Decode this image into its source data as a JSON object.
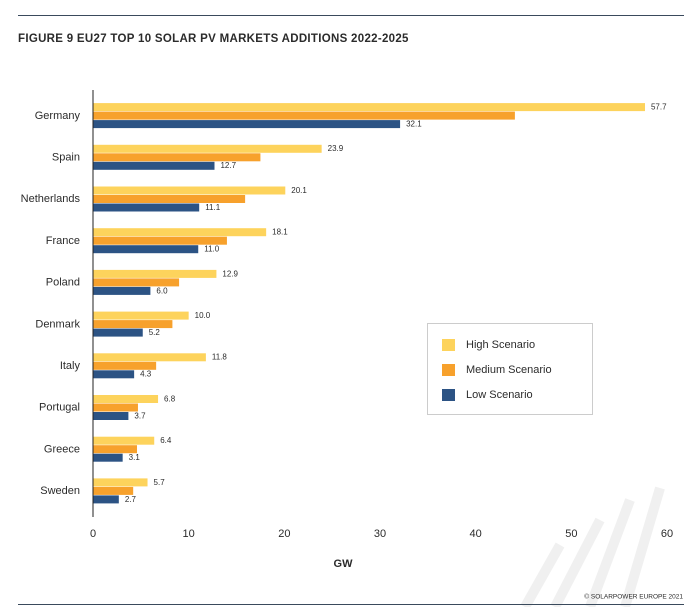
{
  "chart_data": {
    "type": "bar",
    "orientation": "horizontal",
    "title": "FIGURE 9 EU27 TOP 10 SOLAR PV MARKETS ADDITIONS 2022-2025",
    "x_label": "GW",
    "source": "© SOLARPOWER EUROPE 2021",
    "categories": [
      "Germany",
      "Spain",
      "Netherlands",
      "France",
      "Poland",
      "Denmark",
      "Italy",
      "Portugal",
      "Greece",
      "Sweden"
    ],
    "series": [
      {
        "name": "High Scenario",
        "color": "#fdd35c",
        "values": [
          57.7,
          23.9,
          20.1,
          18.1,
          12.9,
          10.0,
          11.8,
          6.8,
          6.4,
          5.7
        ],
        "value_labels": [
          "57.7",
          "23.9",
          "20.1",
          "18.1",
          "12.9",
          "10.0",
          "11.8",
          "6.8",
          "6.4",
          "5.7"
        ]
      },
      {
        "name": "Medium Scenario",
        "color": "#f7a12c",
        "values": [
          44.1,
          17.5,
          15.9,
          14.0,
          9.0,
          8.3,
          6.6,
          4.7,
          4.6,
          4.2
        ]
      },
      {
        "name": "Low Scenario",
        "color": "#2c5384",
        "values": [
          32.1,
          12.7,
          11.1,
          11.0,
          6.0,
          5.2,
          4.3,
          3.7,
          3.1,
          2.7
        ],
        "value_labels": [
          "32.1",
          "12.7",
          "11.1",
          "11.0",
          "6.0",
          "5.2",
          "4.3",
          "3.7",
          "3.1",
          "2.7"
        ]
      }
    ],
    "xlim": [
      0,
      60
    ],
    "xticks": [
      0,
      10,
      20,
      30,
      40,
      50,
      60
    ],
    "legend": "right"
  }
}
